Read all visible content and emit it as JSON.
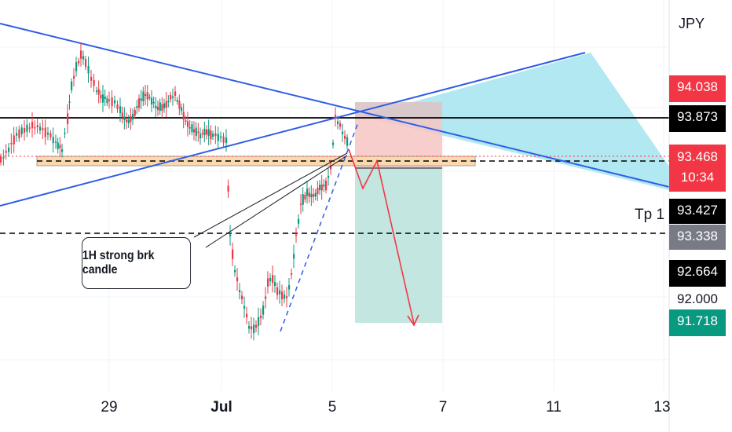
{
  "currency": "JPY",
  "price_tags": [
    {
      "label": "94.038",
      "bg": "#f23645",
      "fg": "#ffffff"
    },
    {
      "label": "93.873",
      "bg": "#000000",
      "fg": "#ffffff"
    },
    {
      "label": "93.468",
      "sub": "10:34",
      "bg": "#f23645",
      "fg": "#ffffff"
    },
    {
      "label": "93.427",
      "bg": "#000000",
      "fg": "#ffffff"
    },
    {
      "label": "93.338",
      "bg": "#787b86",
      "fg": "#ffffff"
    },
    {
      "label": "92.664",
      "bg": "#000000",
      "fg": "#ffffff"
    },
    {
      "label": "92.000",
      "bg": "transparent",
      "fg": "#131722"
    },
    {
      "label": "91.718",
      "bg": "#089981",
      "fg": "#ffffff"
    }
  ],
  "tp_label": "Tp 1",
  "callout": "1H strong brk candle",
  "x_labels": [
    "29",
    "Jul",
    "5",
    "7",
    "11",
    "13"
  ],
  "colors": {
    "up": "#089981",
    "down": "#f23645",
    "trend": "#2f5ce8",
    "target_zone": "#a8e6f0",
    "stop_zone": "#f7c5c3",
    "profit_zone": "#b8e2dc",
    "support_zone": "#fbd9ae"
  },
  "chart_data": {
    "type": "candlestick",
    "currency": "JPY",
    "x_ticks": [
      "29",
      "Jul",
      "5",
      "7",
      "11",
      "13"
    ],
    "price_levels": [
      94.038,
      93.873,
      93.468,
      93.427,
      93.338,
      92.664,
      92.0,
      91.718
    ],
    "annotations": [
      "1H strong brk candle",
      "Tp 1"
    ]
  }
}
